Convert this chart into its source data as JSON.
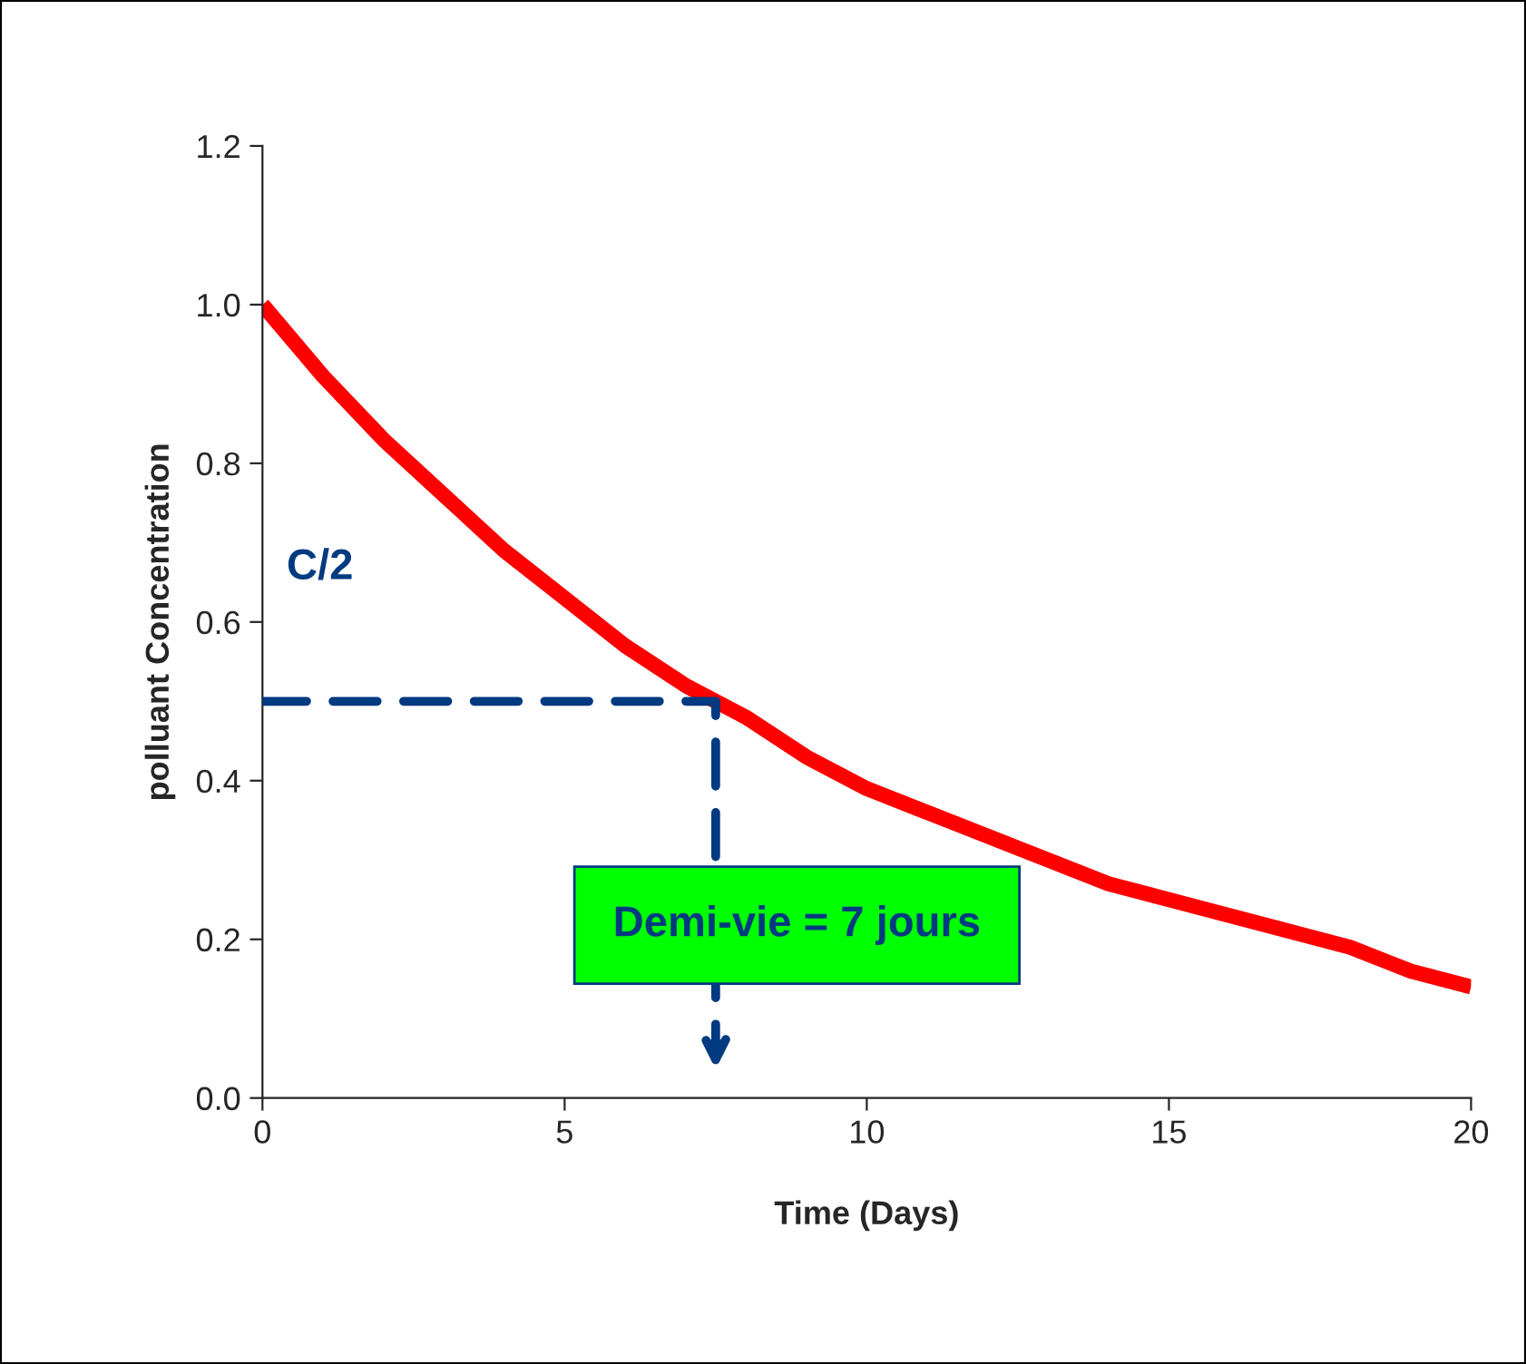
{
  "chart_data": {
    "type": "line",
    "xlabel": "Time (Days)",
    "ylabel": "polluant Concentration",
    "xlim": [
      0,
      20
    ],
    "xticks": [
      0,
      5,
      10,
      15,
      20
    ],
    "ylim": [
      0,
      1.2
    ],
    "yticks": [
      {
        "value": 0,
        "label": "0.0"
      },
      {
        "value": 0.2,
        "label": "0.2"
      },
      {
        "value": 0.4,
        "label": "0.4"
      },
      {
        "value": 0.6,
        "label": "0.6"
      },
      {
        "value": 0.8,
        "label": "0.8"
      },
      {
        "value": 1.0,
        "label": "1.0"
      },
      {
        "value": 1.2,
        "label": "1.2"
      }
    ],
    "grid": false,
    "legend": false,
    "series": [
      {
        "color": "#ff0000",
        "x": [
          0,
          1,
          2,
          3,
          4,
          5,
          6,
          7,
          8,
          9,
          10,
          11,
          12,
          13,
          14,
          15,
          16,
          17,
          18,
          19,
          20
        ],
        "values": [
          1.0,
          0.91,
          0.83,
          0.76,
          0.69,
          0.63,
          0.57,
          0.52,
          0.48,
          0.43,
          0.39,
          0.36,
          0.33,
          0.3,
          0.27,
          0.25,
          0.23,
          0.21,
          0.19,
          0.16,
          0.14
        ],
        "line_style": "solid"
      }
    ],
    "annotations": [
      "C/2",
      "Demi-vie = 7 jours"
    ]
  }
}
